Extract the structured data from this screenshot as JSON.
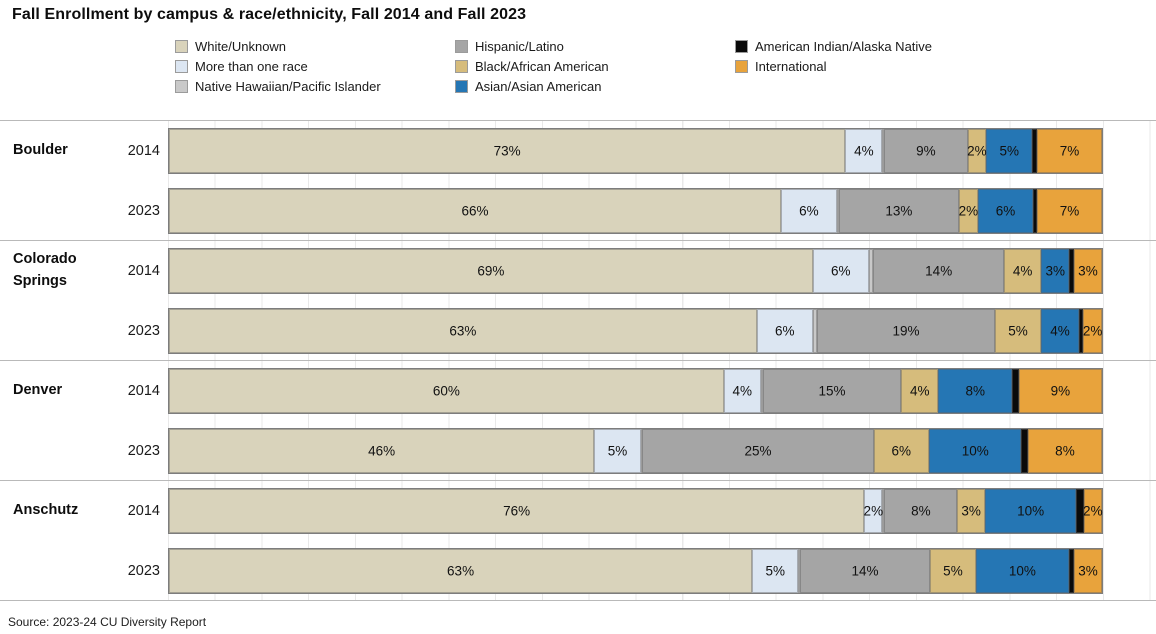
{
  "title": "Fall Enrollment by campus & race/ethnicity, Fall 2014 and Fall 2023",
  "source_note": "Source: 2023-24 CU Diversity Report",
  "legend": {
    "column_category_indexes": [
      [
        0,
        1,
        2
      ],
      [
        3,
        4,
        5
      ],
      [
        6,
        7
      ]
    ]
  },
  "chart_data": {
    "type": "bar",
    "stacked": true,
    "orientation": "horizontal",
    "value_unit": "percent",
    "xlim": [
      0,
      100
    ],
    "grid": "vertical, every 5%",
    "legend_position": "top",
    "categories": [
      "White/Unknown",
      "More than one race",
      "Native Hawaiian/Pacific Islander",
      "Hispanic/Latino",
      "Black/African American",
      "Asian/Asian American",
      "American Indian/Alaska Native",
      "International"
    ],
    "colors": [
      "#d9d3bb",
      "#dce6f2",
      "#c9c9c9",
      "#a5a5a5",
      "#d6bc7c",
      "#2576b4",
      "#0a0a0a",
      "#e8a33c"
    ],
    "groups": [
      {
        "campus": "Boulder",
        "bars": [
          {
            "year": "2014",
            "values": [
              73,
              4,
              0.2,
              9,
              2,
              5,
              0.5,
              7
            ],
            "labels": [
              "73%",
              "4%",
              "",
              "9%",
              "2%",
              "5%",
              "",
              "7%"
            ]
          },
          {
            "year": "2023",
            "values": [
              66,
              6,
              0.2,
              13,
              2,
              6,
              0.4,
              7
            ],
            "labels": [
              "66%",
              "6%",
              "",
              "13%",
              "2%",
              "6%",
              "",
              "7%"
            ]
          }
        ]
      },
      {
        "campus": "Colorado Springs",
        "bars": [
          {
            "year": "2014",
            "values": [
              69,
              6,
              0.5,
              14,
              4,
              3,
              0.5,
              3
            ],
            "labels": [
              "69%",
              "6%",
              "",
              "14%",
              "4%",
              "3%",
              "",
              "3%"
            ]
          },
          {
            "year": "2023",
            "values": [
              63,
              6,
              0.5,
              19,
              5,
              4,
              0.5,
              2
            ],
            "labels": [
              "63%",
              "6%",
              "",
              "19%",
              "5%",
              "4%",
              "",
              "2%"
            ]
          }
        ]
      },
      {
        "campus": "Denver",
        "bars": [
          {
            "year": "2014",
            "values": [
              60,
              4,
              0.2,
              15,
              4,
              8,
              0.7,
              9
            ],
            "labels": [
              "60%",
              "4%",
              "",
              "15%",
              "4%",
              "8%",
              "",
              "9%"
            ]
          },
          {
            "year": "2023",
            "values": [
              46,
              5,
              0.2,
              25,
              6,
              10,
              0.7,
              8
            ],
            "labels": [
              "46%",
              "5%",
              "",
              "25%",
              "6%",
              "10%",
              "",
              "8%"
            ]
          }
        ]
      },
      {
        "campus": "Anschutz",
        "bars": [
          {
            "year": "2014",
            "values": [
              76,
              2,
              0.2,
              8,
              3,
              10,
              0.8,
              2
            ],
            "labels": [
              "76%",
              "2%",
              "",
              "8%",
              "3%",
              "10%",
              "",
              "2%"
            ]
          },
          {
            "year": "2023",
            "values": [
              63,
              5,
              0.2,
              14,
              5,
              10,
              0.6,
              3
            ],
            "labels": [
              "63%",
              "5%",
              "",
              "14%",
              "5%",
              "10%",
              "",
              "3%"
            ]
          }
        ]
      }
    ]
  }
}
